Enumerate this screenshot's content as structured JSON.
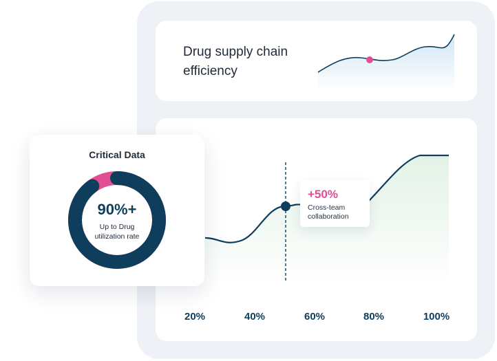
{
  "summary_card": {
    "title": "Drug supply chain efficiency"
  },
  "main_chart": {
    "tooltip": {
      "value": "+50%",
      "label": "Cross-team collaboration"
    }
  },
  "chart_data": {
    "type": "area",
    "x": [
      "20%",
      "40%",
      "60%",
      "80%",
      "100%"
    ],
    "highlight_marker": {
      "x_position": "50%",
      "label": "+50%"
    },
    "colors": {
      "line": "#0f3d5c",
      "fill": "#eaf5ec",
      "marker": "#0f3d5c"
    }
  },
  "metric_card": {
    "title": "Critical Data",
    "value": "90%+",
    "subtitle": "Up to Drug utilization rate",
    "ring": {
      "percent": 90,
      "primary_color": "#0f3d5c",
      "accent_color": "#e24e93"
    }
  },
  "colors": {
    "panel_bg": "#eef1f5",
    "navy": "#0f3d5c",
    "pink": "#e24e93",
    "spark_fill": "#d4eaf6",
    "area_fill": "#eaf5ec"
  }
}
